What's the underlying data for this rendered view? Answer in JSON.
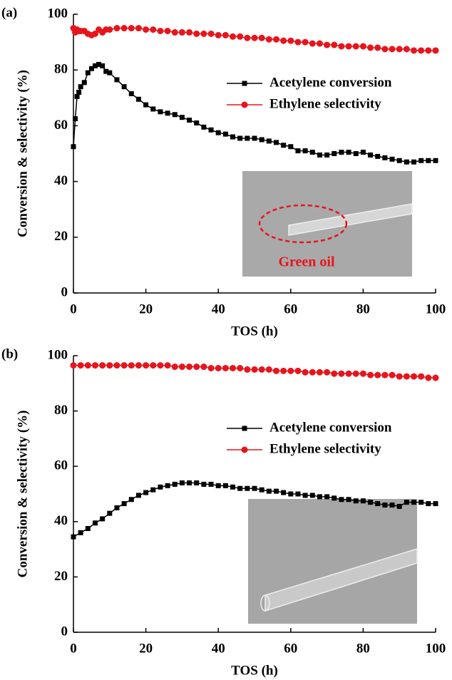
{
  "chart_data": [
    {
      "type": "line",
      "panel_label": "(a)",
      "xlabel": "TOS (h)",
      "ylabel": "Conversion & selectivity (%)",
      "annotation": "Green oil",
      "x": [
        0,
        0.5,
        1,
        1.5,
        2,
        3,
        4,
        5,
        6,
        7,
        8,
        9,
        10,
        12,
        14,
        16,
        18,
        20,
        22,
        24,
        26,
        28,
        30,
        32,
        34,
        36,
        38,
        40,
        42,
        44,
        46,
        48,
        50,
        52,
        54,
        56,
        58,
        60,
        62,
        64,
        66,
        68,
        70,
        72,
        74,
        76,
        78,
        80,
        82,
        84,
        86,
        88,
        90,
        92,
        94,
        96,
        98,
        100
      ],
      "series": [
        {
          "name": "Acetylene conversion",
          "color": "#000000",
          "marker": "square",
          "values": [
            52.5,
            62.5,
            70.5,
            72,
            74,
            75.5,
            79,
            80.5,
            81.5,
            82,
            81.5,
            79.5,
            79,
            76.5,
            74,
            71.5,
            69.5,
            67.5,
            66,
            65,
            64.5,
            64,
            63,
            62,
            61,
            59.5,
            58.5,
            57.5,
            57,
            56,
            55.5,
            55.5,
            55.5,
            55,
            54.5,
            54,
            53,
            52.5,
            51,
            51,
            50.5,
            49.5,
            49.5,
            50,
            50.5,
            50.5,
            50,
            50.5,
            49.5,
            49,
            48.5,
            48,
            47.5,
            47,
            47,
            47.5,
            47.5,
            47.5
          ]
        },
        {
          "name": "Ethylene selectivity",
          "color": "#e8141b",
          "marker": "circle",
          "values": [
            95,
            93.5,
            94.5,
            94,
            94,
            94,
            93,
            92.5,
            93,
            94.5,
            93.5,
            94.5,
            94.5,
            95,
            95,
            95,
            95,
            94.5,
            94.5,
            94,
            94,
            93.5,
            93.5,
            93.5,
            93,
            93,
            93,
            92.5,
            92.5,
            92,
            92,
            91.5,
            91.5,
            91.5,
            91,
            91,
            90.5,
            90.5,
            90,
            90,
            89.5,
            89.5,
            89,
            89,
            88.5,
            88.5,
            88.5,
            88.5,
            88,
            88,
            87.5,
            87.5,
            87.5,
            87.5,
            87,
            87,
            87,
            87
          ]
        }
      ],
      "xlim": [
        0,
        100
      ],
      "xticks": [
        0,
        20,
        40,
        60,
        80,
        100
      ],
      "ylim": [
        0,
        100
      ],
      "yticks": [
        0,
        20,
        40,
        60,
        80,
        100
      ]
    },
    {
      "type": "line",
      "panel_label": "(b)",
      "xlabel": "TOS (h)",
      "ylabel": "Conversion & selectivity (%)",
      "x": [
        0,
        2,
        4,
        6,
        8,
        10,
        12,
        14,
        16,
        18,
        20,
        22,
        24,
        26,
        28,
        30,
        32,
        34,
        36,
        38,
        40,
        42,
        44,
        46,
        48,
        50,
        52,
        54,
        56,
        58,
        60,
        62,
        64,
        66,
        68,
        70,
        72,
        74,
        76,
        78,
        80,
        82,
        84,
        86,
        88,
        90,
        92,
        94,
        96,
        98,
        100
      ],
      "series": [
        {
          "name": "Acetylene conversion",
          "color": "#000000",
          "marker": "square",
          "values": [
            34.5,
            36,
            37.5,
            39.5,
            41,
            43,
            45,
            46.5,
            48,
            49.5,
            50.5,
            51.5,
            52.5,
            53,
            53.5,
            54,
            54,
            54,
            53.5,
            53.5,
            53,
            53,
            52.5,
            52,
            52,
            52,
            51.5,
            51,
            51,
            50.5,
            50,
            50,
            49.5,
            49.5,
            49,
            49,
            48.5,
            48,
            48,
            47.5,
            47.5,
            47,
            46.5,
            46,
            46,
            45.5,
            47,
            47,
            47,
            46.5,
            46.5
          ]
        },
        {
          "name": "Ethylene selectivity",
          "color": "#e8141b",
          "marker": "circle",
          "values": [
            96.5,
            96.5,
            96.5,
            96.5,
            96.5,
            96.5,
            96.5,
            96.5,
            96.5,
            96.5,
            96.5,
            96.5,
            96.5,
            96.5,
            96,
            96,
            96,
            96,
            96,
            95.5,
            95.5,
            95.5,
            95.5,
            95.5,
            95,
            95,
            95,
            95,
            94.5,
            94.5,
            94.5,
            94.5,
            94,
            94,
            94,
            94,
            93.5,
            93.5,
            93.5,
            93.5,
            93.5,
            93,
            93,
            93,
            93,
            92.5,
            92.5,
            92.5,
            92.5,
            92,
            92
          ]
        }
      ],
      "xlim": [
        0,
        100
      ],
      "xticks": [
        0,
        20,
        40,
        60,
        80,
        100
      ],
      "ylim": [
        0,
        100
      ],
      "yticks": [
        0,
        20,
        40,
        60,
        80,
        100
      ]
    }
  ]
}
